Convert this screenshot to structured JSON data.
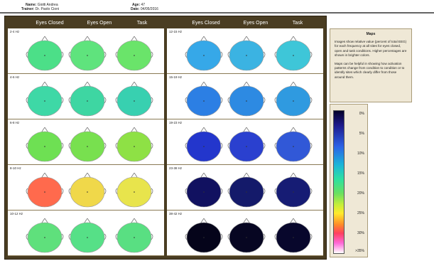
{
  "header": {
    "name_label": "Name:",
    "name_value": "Giotti Andrea",
    "trainer_label": "Trainer:",
    "trainer_value": "Dr. Paolo Cioni",
    "age_label": "Age:",
    "age_value": "47",
    "date_label": "Date:",
    "date_value": "04/05/2016"
  },
  "columns": [
    "Eyes Closed",
    "Eyes Open",
    "Task",
    "Eyes Closed",
    "Eyes Open",
    "Task"
  ],
  "rows_left": [
    {
      "band": "2-4 Hz",
      "colors": [
        "#4cdf88",
        "#5fe37d",
        "#6ae46a"
      ]
    },
    {
      "band": "4-6 Hz",
      "colors": [
        "#3ed8a6",
        "#3ed6a2",
        "#38d0b0"
      ]
    },
    {
      "band": "6-8 Hz",
      "colors": [
        "#6ee053",
        "#78e04f",
        "#8ee145"
      ]
    },
    {
      "band": "8-10 Hz",
      "colors": [
        "#ff6a4d",
        "#f0d84a",
        "#e8e44c"
      ]
    },
    {
      "band": "10-12 Hz",
      "colors": [
        "#5fe07c",
        "#56e087",
        "#59df82"
      ]
    }
  ],
  "rows_right": [
    {
      "band": "12-15 Hz",
      "colors": [
        "#36a8e8",
        "#3bb3e2",
        "#3ec6d8"
      ]
    },
    {
      "band": "15-19 Hz",
      "colors": [
        "#2c7fe4",
        "#2d8ae2",
        "#2f9ae0"
      ]
    },
    {
      "band": "19-23 Hz",
      "colors": [
        "#2336cc",
        "#2a40cf",
        "#3158d7"
      ]
    },
    {
      "band": "23-38 Hz",
      "colors": [
        "#111160",
        "#141a6a",
        "#161c74"
      ]
    },
    {
      "band": "38-42 Hz",
      "colors": [
        "#05041a",
        "#070622",
        "#08072c"
      ]
    }
  ],
  "info": {
    "title": "Maps",
    "p1": "Images show relative value (percent of total EEG) for each frequency at all sites for eyes closed, open and task conditions. Higher percentages are shown in brighter colors.",
    "p2": "Maps can be helpful in showing how activation patterns change from condition to condition or to identify sites which clearly differ from those around them."
  },
  "legend": {
    "ticks": [
      "0%",
      "5%",
      "10%",
      "15%",
      "20%",
      "25%",
      "30%",
      ">35%"
    ]
  }
}
